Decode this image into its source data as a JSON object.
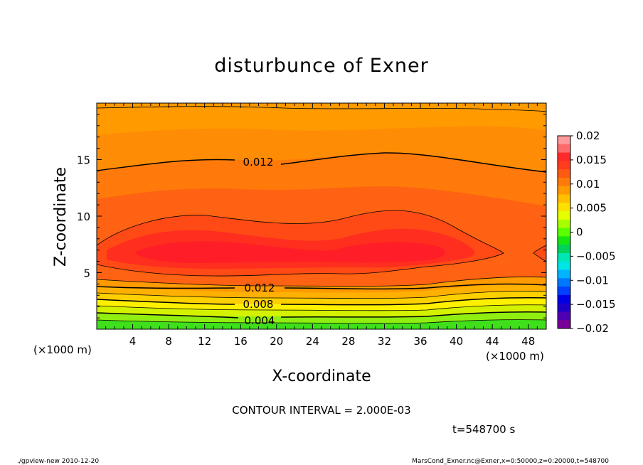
{
  "chart_data": {
    "type": "contour",
    "title": "disturbunce of Exner",
    "xlabel": "X-coordinate",
    "ylabel": "Z-coordinate",
    "x_unit_left": "(×1000 m)",
    "x_unit_right": "(×1000 m)",
    "xlim": [
      0,
      50
    ],
    "ylim": [
      0,
      20
    ],
    "x_ticks": [
      "4",
      "8",
      "12",
      "16",
      "20",
      "24",
      "28",
      "32",
      "36",
      "40",
      "44",
      "48"
    ],
    "y_ticks": [
      "5",
      "10",
      "15"
    ],
    "contour_interval_text": "CONTOUR INTERVAL = 2.000E-03",
    "time_text": "t=548700 s",
    "contour_labels": [
      {
        "text": "0.012",
        "x": 17.8,
        "z": 14.8
      },
      {
        "text": "0.012",
        "x": 17.8,
        "z": 3.7
      },
      {
        "text": "0.008",
        "x": 17.8,
        "z": 2.2
      },
      {
        "text": "0.004",
        "x": 17.8,
        "z": 0.8
      }
    ],
    "colorbar": {
      "labels": [
        "0.02",
        "0.015",
        "0.01",
        "0.005",
        "0",
        "−0.005",
        "−0.01",
        "−0.015",
        "−0.02"
      ],
      "colors_top_to_bottom": [
        "#ff9b9b",
        "#ff6b6b",
        "#ff2a2a",
        "#ff3c1e",
        "#ff5a14",
        "#ff7a0a",
        "#ff9a00",
        "#ffc000",
        "#ffe000",
        "#e6ff00",
        "#a8ff00",
        "#5aff00",
        "#14e614",
        "#00d25a",
        "#00e6b4",
        "#00e6e6",
        "#00b4ff",
        "#0078ff",
        "#0041ff",
        "#0000e6",
        "#1e00c8",
        "#5000b4",
        "#780096"
      ]
    },
    "bands": [
      {
        "color": "#3fe01b",
        "level": 0.0
      },
      {
        "color": "#90ee10",
        "level": 0.002
      },
      {
        "color": "#d4f200",
        "level": 0.004
      },
      {
        "color": "#fff000",
        "level": 0.006
      },
      {
        "color": "#ffd000",
        "level": 0.007
      },
      {
        "color": "#ffb000",
        "level": 0.008
      },
      {
        "color": "#ff9a00",
        "level": 0.01
      },
      {
        "color": "#ff7e0a",
        "level": 0.011
      },
      {
        "color": "#ff6212",
        "level": 0.012
      },
      {
        "color": "#ff4a16",
        "level": 0.013
      },
      {
        "color": "#ff2e1e",
        "level": 0.014
      },
      {
        "color": "#ff1e28",
        "level": 0.015
      }
    ]
  },
  "footer": {
    "left": "./gpview-new  2010-12-20",
    "right": "MarsCond_Exner.nc@Exner,x=0:50000,z=0:20000,t=548700"
  }
}
